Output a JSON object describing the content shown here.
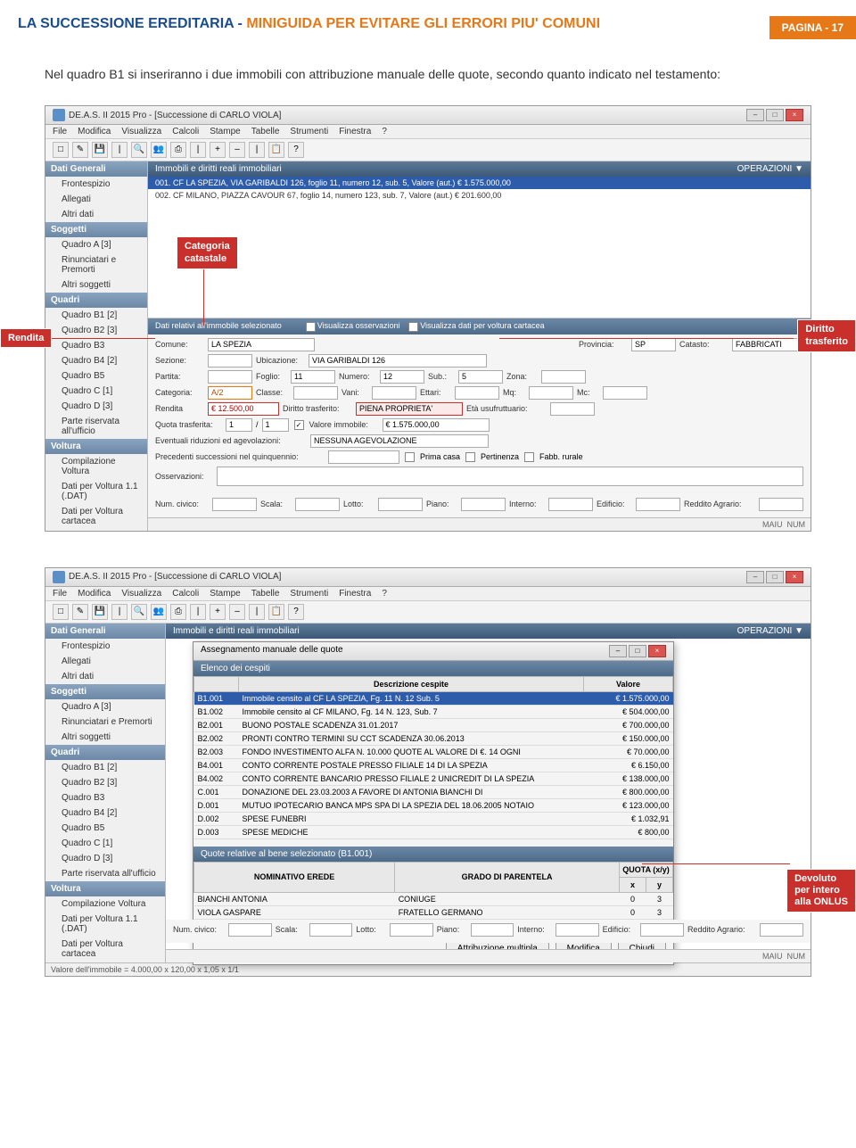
{
  "header": {
    "title_blue": "LA SUCCESSIONE EREDITARIA",
    "dash": " - ",
    "title_orange": "MINIGUIDA PER EVITARE GLI ERRORI PIU' COMUNI",
    "badge": "PAGINA - 17"
  },
  "intro": "Nel quadro B1 si inseriranno i due immobili con attribuzione manuale delle quote, secondo quanto indicato nel testamento:",
  "callouts": {
    "categoria": "Categoria catastale",
    "rendita": "Rendita",
    "diritto": "Diritto trasferito",
    "devoluto_l1": "Devoluto",
    "devoluto_l2": "per intero",
    "devoluto_l3": "alla ONLUS"
  },
  "app": {
    "title": "DE.A.S. II 2015 Pro - [Successione di CARLO VIOLA]",
    "menu": [
      "File",
      "Modifica",
      "Visualizza",
      "Calcoli",
      "Stampe",
      "Tabelle",
      "Strumenti",
      "Finestra",
      "?"
    ],
    "side_dati": "Dati Generali",
    "side_dati_items": [
      "Frontespizio",
      "Allegati",
      "Altri dati"
    ],
    "side_sogg": "Soggetti",
    "side_sogg_items": [
      "Quadro A [3]",
      "Rinunciatari e Premorti",
      "Altri soggetti"
    ],
    "side_quadri": "Quadri",
    "side_quadri_items": [
      "Quadro B1 [2]",
      "Quadro B2 [3]",
      "Quadro B3",
      "Quadro B4 [2]",
      "Quadro B5",
      "Quadro C [1]",
      "Quadro D [3]",
      "Parte riservata all'ufficio"
    ],
    "side_voltura": "Voltura",
    "side_voltura_items": [
      "Compilazione Voltura",
      "Dati per Voltura 1.1 (.DAT)",
      "Dati per Voltura cartacea"
    ],
    "main_title": "Immobili e diritti reali immobiliari",
    "ops": "OPERAZIONI ▼",
    "row1": "001. CF LA SPEZIA, VIA GARIBALDI 126, foglio 11, numero 12, sub. 5, Valore (aut.) € 1.575.000,00",
    "row2": "002. CF MILANO, PIAZZA CAVOUR 67, foglio 14, numero 123, sub. 7, Valore (aut.) € 201.600,00",
    "form_hdr": "Dati relativi all'immobile selezionato",
    "form_hdr_chk1": "Visualizza osservazioni",
    "form_hdr_chk2": "Visualizza dati per voltura cartacea",
    "labels": {
      "comune": "Comune:",
      "provincia": "Provincia:",
      "catasto": "Catasto:",
      "sezione": "Sezione:",
      "ubicazione": "Ubicazione:",
      "partita": "Partita:",
      "foglio": "Foglio:",
      "numero": "Numero:",
      "sub": "Sub.:",
      "zona": "Zona:",
      "categoria": "Categoria:",
      "classe": "Classe:",
      "vani": "Vani:",
      "ettari": "Ettari:",
      "mq": "Mq:",
      "mc": "Mc:",
      "rendita": "Rendita",
      "diritto": "Diritto trasferito:",
      "eta": "Età usufruttuario:",
      "quota": "Quota trasferita:",
      "valimm": "Valore immobile:",
      "riduzioni": "Eventuali riduzioni ed agevolazioni:",
      "precedenti": "Precedenti successioni nel quinquennio:",
      "primacasa": "Prima casa",
      "pertinenza": "Pertinenza",
      "fabbrur": "Fabb. rurale",
      "osservazioni": "Osservazioni:",
      "numcivico": "Num. civico:",
      "scala": "Scala:",
      "lotto": "Lotto:",
      "piano": "Piano:",
      "interno": "Interno:",
      "edificio": "Edificio:",
      "reddito": "Reddito Agrario:"
    },
    "values": {
      "comune": "LA SPEZIA",
      "provincia": "SP",
      "catasto": "FABBRICATI",
      "ubicazione": "VIA GARIBALDI 126",
      "foglio": "11",
      "numero": "12",
      "sub": "5",
      "categoria": "A/2",
      "rendita": "€ 12.500,00",
      "diritto": "PIENA PROPRIETA'",
      "quota1": "1",
      "quota2": "1",
      "valimm": "€ 1.575.000,00",
      "riduzioni": "NESSUNA AGEVOLAZIONE"
    },
    "status1": "MAIU",
    "status2": "NUM"
  },
  "dialog": {
    "title": "Assegnamento manuale delle quote",
    "hdr": "Elenco dei cespiti",
    "col1": "Descrizione cespite",
    "col2": "Valore",
    "rows": [
      [
        "B1.001",
        "Immobile censito al CF LA SPEZIA, Fg. 11 N. 12 Sub. 5",
        "€ 1.575.000,00"
      ],
      [
        "B1.002",
        "Immobile censito al CF MILANO, Fg. 14 N. 123, Sub. 7",
        "€ 504.000,00"
      ],
      [
        "B2.001",
        "BUONO POSTALE SCADENZA 31.01.2017",
        "€ 700.000,00"
      ],
      [
        "B2.002",
        "PRONTI CONTRO TERMINI SU CCT SCADENZA 30.06.2013",
        "€ 150.000,00"
      ],
      [
        "B2.003",
        "FONDO INVESTIMENTO ALFA N. 10.000 QUOTE AL VALORE DI €. 14 OGNI",
        "€ 70.000,00"
      ],
      [
        "B4.001",
        "CONTO CORRENTE POSTALE PRESSO FILIALE 14 DI LA SPEZIA",
        "€ 6.150,00"
      ],
      [
        "B4.002",
        "CONTO CORRENTE BANCARIO PRESSO FILIALE 2 UNICREDIT DI LA SPEZIA",
        "€ 138.000,00"
      ],
      [
        "C.001",
        "DONAZIONE DEL 23.03.2003 A FAVORE DI ANTONIA BIANCHI DI",
        "€ 800.000,00"
      ],
      [
        "D.001",
        "MUTUO IPOTECARIO BANCA MPS SPA DI LA SPEZIA DEL 18.06.2005 NOTAIO",
        "€ 123.000,00"
      ],
      [
        "D.002",
        "SPESE FUNEBRI",
        "€ 1.032,91"
      ],
      [
        "D.003",
        "SPESE MEDICHE",
        "€ 800,00"
      ]
    ],
    "hdr2": "Quote relative al bene selezionato (B1.001)",
    "hcol1": "NOMINATIVO EREDE",
    "hcol2": "GRADO DI PARENTELA",
    "hcol3": "QUOTA (x/y)",
    "hcol3x": "x",
    "hcol3y": "y",
    "hrows": [
      [
        "BIANCHI ANTONIA",
        "CONIUGE",
        "0",
        "3"
      ],
      [
        "VIOLA GASPARE",
        "FRATELLO GERMANO",
        "0",
        "3"
      ],
      [
        "VIVERE ONLUS",
        "ALTRO SOGGETTO",
        "3",
        "3"
      ]
    ],
    "btn1": "Attribuzione multipla",
    "btn2": "Modifica",
    "btn3": "Chiudi"
  },
  "bottom_status": "Valore dell'immobile = 4.000,00 x 120,00 x 1,05 x 1/1"
}
